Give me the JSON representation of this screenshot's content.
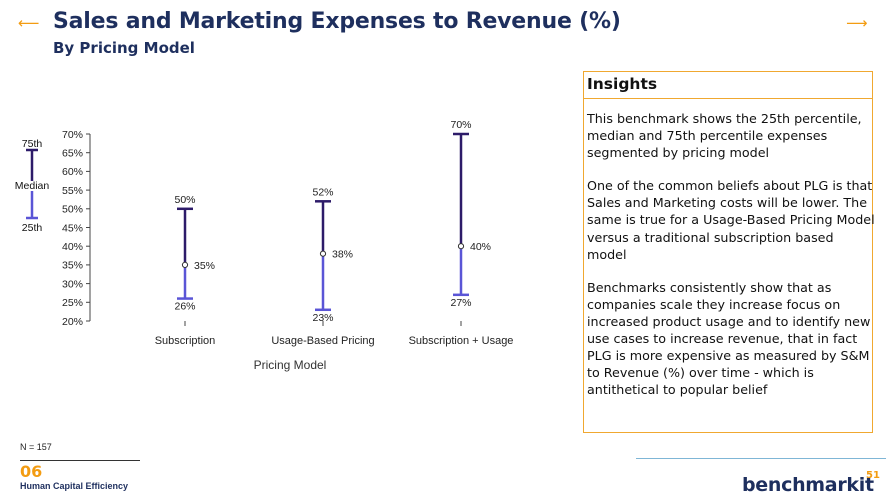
{
  "title": "Sales and Marketing Expenses to Revenue (%)",
  "subtitle": "By Pricing Model",
  "icons": {
    "left": "arrow-left-icon",
    "right": "arrow-right-icon"
  },
  "colors": {
    "dark": "#2d1b69",
    "light": "#5a55d6",
    "title": "#1e2f5e",
    "accent": "#f39c12"
  },
  "legend": {
    "p75": "75th",
    "median": "Median",
    "p25": "25th"
  },
  "chart_data": {
    "type": "range",
    "categories": [
      "Subscription",
      "Usage-Based Pricing",
      "Subscription + Usage"
    ],
    "series": [
      {
        "name": "25th",
        "values": [
          26,
          23,
          27
        ]
      },
      {
        "name": "Median",
        "values": [
          35,
          38,
          40
        ]
      },
      {
        "name": "75th",
        "values": [
          50,
          52,
          70
        ]
      }
    ],
    "value_labels": {
      "p25": [
        "26%",
        "23%",
        "27%"
      ],
      "median": [
        "35%",
        "38%",
        "40%"
      ],
      "p75": [
        "50%",
        "52%",
        "70%"
      ]
    },
    "yticks": [
      "20%",
      "25%",
      "30%",
      "35%",
      "40%",
      "45%",
      "50%",
      "55%",
      "60%",
      "65%",
      "70%"
    ],
    "ylim": [
      20,
      70
    ],
    "xlabel": "Pricing Model",
    "ylabel": "",
    "grid": false,
    "legend_position": "left"
  },
  "insights": {
    "title": "Insights",
    "paragraphs": [
      "This benchmark shows the 25th percentile, median and 75th percentile expenses segmented by pricing model",
      "One of the common beliefs about PLG is that Sales and Marketing costs will be lower.  The same is true for a Usage-Based Pricing Model versus a traditional subscription based model",
      "Benchmarks consistently show that as companies scale they increase focus on increased product usage and to identify new use cases to increase revenue, that in fact PLG is more expensive as measured by S&M to Revenue (%) over time - which is antithetical to popular belief"
    ]
  },
  "sample_size": "N = 157",
  "section": {
    "number": "06",
    "name": "Human Capital Efficiency"
  },
  "logo": {
    "text": "benchmarkit"
  },
  "page_number": "51"
}
